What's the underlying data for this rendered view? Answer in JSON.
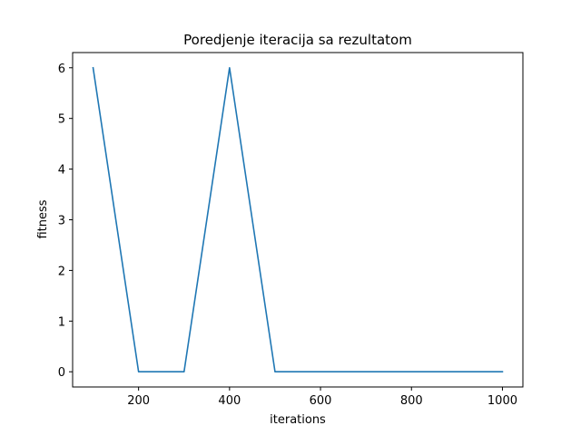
{
  "chart_data": {
    "type": "line",
    "title": "Poredjenje iteracija sa rezultatom",
    "xlabel": "iterations",
    "ylabel": "fitness",
    "xlim": [
      55,
      1045
    ],
    "ylim": [
      -0.3,
      6.3
    ],
    "xticks": [
      200,
      400,
      600,
      800,
      1000
    ],
    "yticks": [
      0,
      1,
      2,
      3,
      4,
      5,
      6
    ],
    "grid": false,
    "series": [
      {
        "color": "#1f77b4",
        "x": [
          100,
          200,
          300,
          400,
          500,
          600,
          700,
          800,
          900,
          1000
        ],
        "y": [
          6,
          0,
          0,
          6,
          0,
          0,
          0,
          0,
          0,
          0
        ]
      }
    ]
  }
}
